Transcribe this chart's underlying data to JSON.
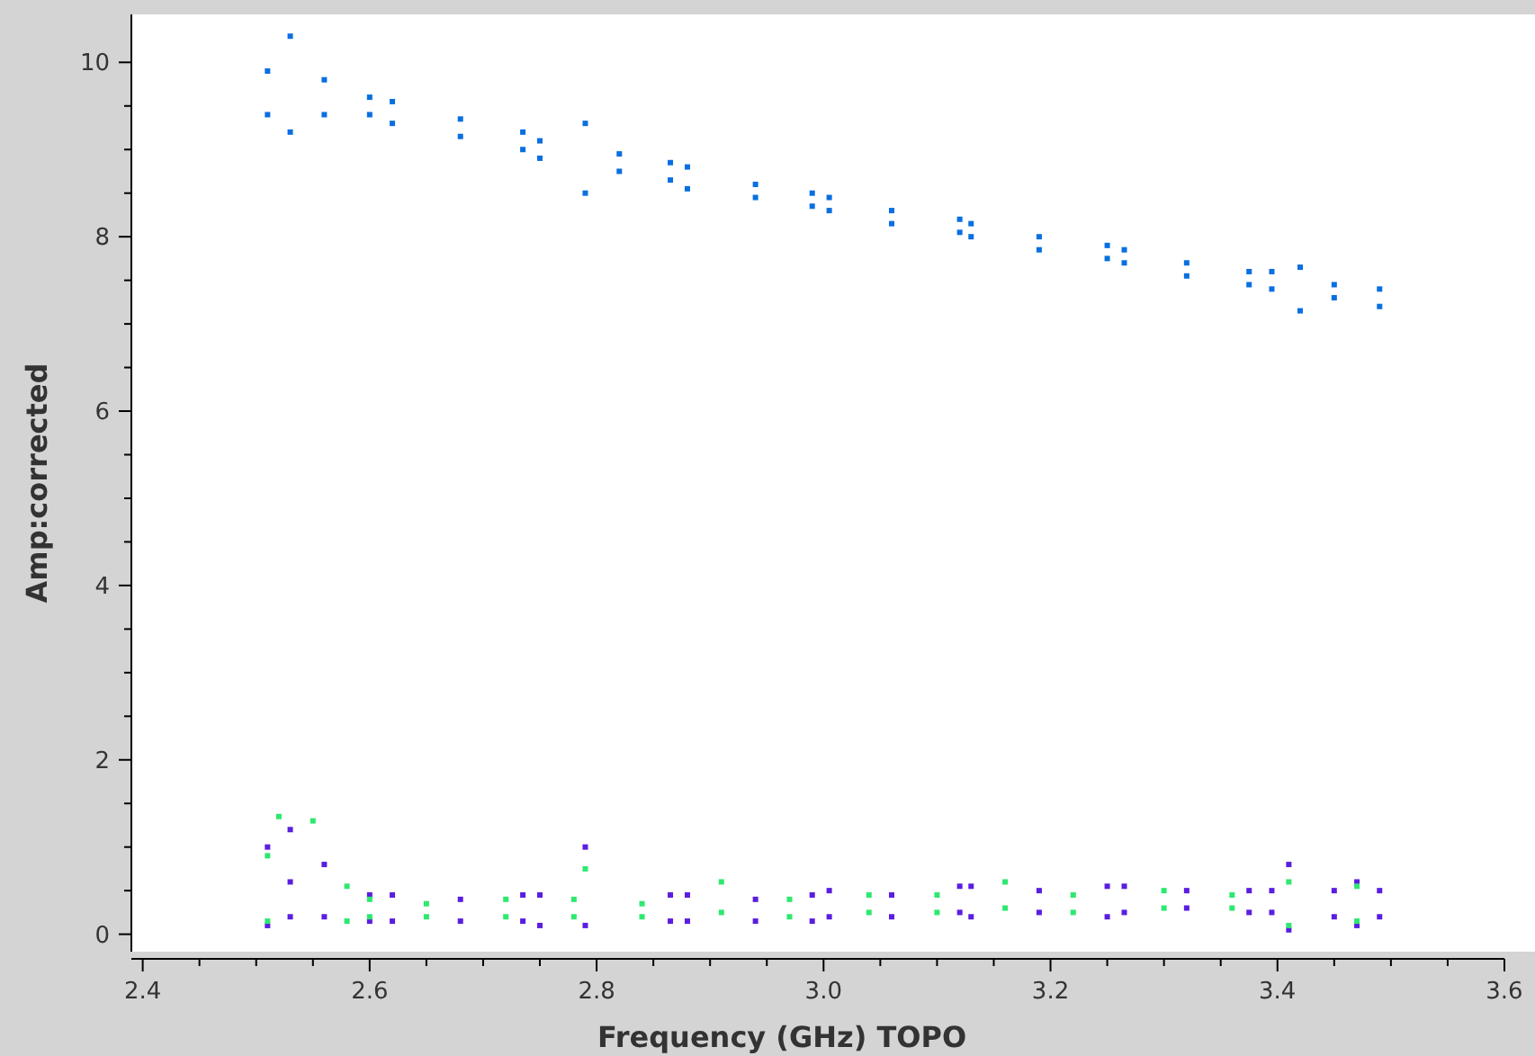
{
  "chart_data": {
    "type": "scatter",
    "xlabel": "Frequency (GHz) TOPO",
    "ylabel": "Amp:corrected",
    "marker": "square",
    "grid": false,
    "xlim": [
      2.39,
      3.6
    ],
    "ylim": [
      -0.2,
      10.55
    ],
    "xticks": [
      2.4,
      {
        "value": 2.45,
        "label": null
      },
      {
        "value": 2.5,
        "label": null
      },
      {
        "value": 2.55,
        "label": null
      },
      2.6,
      {
        "value": 2.65,
        "label": null
      },
      {
        "value": 2.7,
        "label": null
      },
      {
        "value": 2.75,
        "label": null
      },
      2.8,
      {
        "value": 2.85,
        "label": null
      },
      {
        "value": 2.9,
        "label": null
      },
      {
        "value": 2.95,
        "label": null
      },
      {
        "value": 3.0,
        "label": "3.0"
      },
      {
        "value": 3.05,
        "label": null
      },
      {
        "value": 3.1,
        "label": null
      },
      {
        "value": 3.15,
        "label": null
      },
      3.2,
      {
        "value": 3.25,
        "label": null
      },
      {
        "value": 3.3,
        "label": null
      },
      {
        "value": 3.35,
        "label": null
      },
      3.4,
      {
        "value": 3.45,
        "label": null
      },
      {
        "value": 3.5,
        "label": null
      },
      {
        "value": 3.55,
        "label": null
      },
      3.6
    ],
    "yticks": [
      0,
      {
        "value": 0.5,
        "label": null
      },
      {
        "value": 1,
        "label": null
      },
      {
        "value": 1.5,
        "label": null
      },
      2,
      {
        "value": 2.5,
        "label": null
      },
      {
        "value": 3,
        "label": null
      },
      {
        "value": 3.5,
        "label": null
      },
      4,
      {
        "value": 4.5,
        "label": null
      },
      {
        "value": 5,
        "label": null
      },
      {
        "value": 5.5,
        "label": null
      },
      6,
      {
        "value": 6.5,
        "label": null
      },
      {
        "value": 7,
        "label": null
      },
      {
        "value": 7.5,
        "label": null
      },
      8,
      {
        "value": 8.5,
        "label": null
      },
      {
        "value": 9,
        "label": null
      },
      {
        "value": 9.5,
        "label": null
      },
      10
    ],
    "series": [
      {
        "color": "#0a6fe0",
        "x": [
          2.51,
          2.51,
          2.53,
          2.53,
          2.56,
          2.56,
          2.6,
          2.6,
          2.62,
          2.62,
          2.68,
          2.68,
          2.735,
          2.735,
          2.75,
          2.75,
          2.79,
          2.79,
          2.82,
          2.82,
          2.865,
          2.865,
          2.88,
          2.88,
          2.94,
          2.94,
          2.99,
          2.99,
          3.005,
          3.005,
          3.06,
          3.06,
          3.12,
          3.12,
          3.13,
          3.13,
          3.19,
          3.19,
          3.25,
          3.25,
          3.265,
          3.265,
          3.32,
          3.32,
          3.375,
          3.375,
          3.395,
          3.395,
          3.42,
          3.42,
          3.45,
          3.45,
          3.49,
          3.49
        ],
        "values": [
          9.9,
          9.4,
          10.3,
          9.2,
          9.8,
          9.4,
          9.6,
          9.4,
          9.55,
          9.3,
          9.35,
          9.15,
          9.2,
          9.0,
          9.1,
          8.9,
          9.3,
          8.5,
          8.95,
          8.75,
          8.85,
          8.65,
          8.8,
          8.55,
          8.6,
          8.45,
          8.5,
          8.35,
          8.45,
          8.3,
          8.3,
          8.15,
          8.2,
          8.05,
          8.15,
          8.0,
          8.0,
          7.85,
          7.9,
          7.75,
          7.85,
          7.7,
          7.7,
          7.55,
          7.6,
          7.45,
          7.6,
          7.4,
          7.65,
          7.15,
          7.45,
          7.3,
          7.4,
          7.2
        ]
      },
      {
        "color": "#5a1ee0",
        "x": [
          2.51,
          2.51,
          2.53,
          2.53,
          2.53,
          2.56,
          2.56,
          2.6,
          2.6,
          2.62,
          2.62,
          2.68,
          2.68,
          2.735,
          2.735,
          2.75,
          2.75,
          2.79,
          2.79,
          2.865,
          2.865,
          2.88,
          2.88,
          2.94,
          2.94,
          2.99,
          2.99,
          3.005,
          3.005,
          3.06,
          3.06,
          3.12,
          3.12,
          3.13,
          3.13,
          3.19,
          3.19,
          3.25,
          3.25,
          3.265,
          3.265,
          3.32,
          3.32,
          3.375,
          3.375,
          3.395,
          3.395,
          3.41,
          3.41,
          3.45,
          3.45,
          3.47,
          3.47,
          3.49,
          3.49
        ],
        "values": [
          1.0,
          0.1,
          1.2,
          0.2,
          0.6,
          0.8,
          0.2,
          0.45,
          0.15,
          0.45,
          0.15,
          0.4,
          0.15,
          0.45,
          0.15,
          0.45,
          0.1,
          1.0,
          0.1,
          0.45,
          0.15,
          0.45,
          0.15,
          0.4,
          0.15,
          0.45,
          0.15,
          0.5,
          0.2,
          0.45,
          0.2,
          0.55,
          0.25,
          0.55,
          0.2,
          0.5,
          0.25,
          0.55,
          0.2,
          0.55,
          0.25,
          0.5,
          0.3,
          0.5,
          0.25,
          0.5,
          0.25,
          0.8,
          0.05,
          0.5,
          0.2,
          0.6,
          0.1,
          0.5,
          0.2
        ]
      },
      {
        "color": "#2ee870",
        "x": [
          2.51,
          2.51,
          2.52,
          2.55,
          2.58,
          2.58,
          2.6,
          2.6,
          2.65,
          2.65,
          2.72,
          2.72,
          2.78,
          2.78,
          2.79,
          2.84,
          2.84,
          2.91,
          2.91,
          2.97,
          2.97,
          3.04,
          3.04,
          3.1,
          3.1,
          3.16,
          3.16,
          3.22,
          3.22,
          3.3,
          3.3,
          3.36,
          3.36,
          3.41,
          3.41,
          3.47,
          3.47
        ],
        "values": [
          0.9,
          0.15,
          1.35,
          1.3,
          0.55,
          0.15,
          0.4,
          0.2,
          0.35,
          0.2,
          0.4,
          0.2,
          0.4,
          0.2,
          0.75,
          0.35,
          0.2,
          0.6,
          0.25,
          0.4,
          0.2,
          0.45,
          0.25,
          0.45,
          0.25,
          0.6,
          0.3,
          0.45,
          0.25,
          0.5,
          0.3,
          0.45,
          0.3,
          0.6,
          0.1,
          0.55,
          0.15
        ]
      }
    ]
  }
}
